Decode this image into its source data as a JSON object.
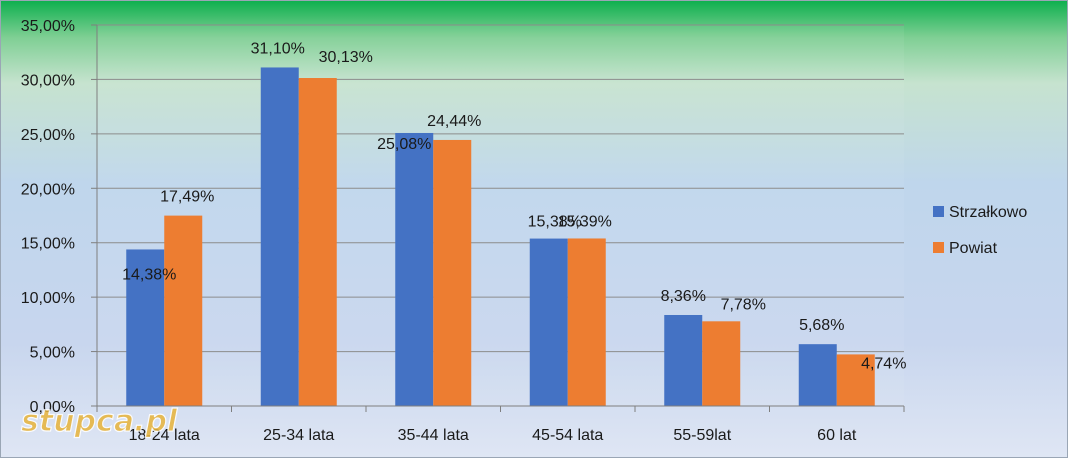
{
  "chart_data": {
    "type": "bar",
    "categories": [
      "18-24 lata",
      "25-34 lata",
      "35-44 lata",
      "45-54 lata",
      "55-59lat",
      "60 lat"
    ],
    "series": [
      {
        "name": "Strzałkowo",
        "values": [
          14.38,
          31.1,
          25.08,
          15.38,
          8.36,
          5.68
        ],
        "labels": [
          "14,38%",
          "31,10%",
          "25,08%",
          "15,38%",
          "8,36%",
          "5,68%"
        ],
        "color": "#4472c4"
      },
      {
        "name": "Powiat",
        "values": [
          17.49,
          30.13,
          24.44,
          15.39,
          7.78,
          4.74
        ],
        "labels": [
          "17,49%",
          "30,13%",
          "24,44%",
          "15,39%",
          "7,78%",
          "4,74%"
        ],
        "color": "#ed7d31"
      }
    ],
    "ylim": [
      0,
      35
    ],
    "yticks": [
      "0,00%",
      "5,00%",
      "10,00%",
      "15,00%",
      "20,00%",
      "25,00%",
      "30,00%",
      "35,00%"
    ],
    "grid": true,
    "legend": "right",
    "watermark": "stupca.pl"
  }
}
